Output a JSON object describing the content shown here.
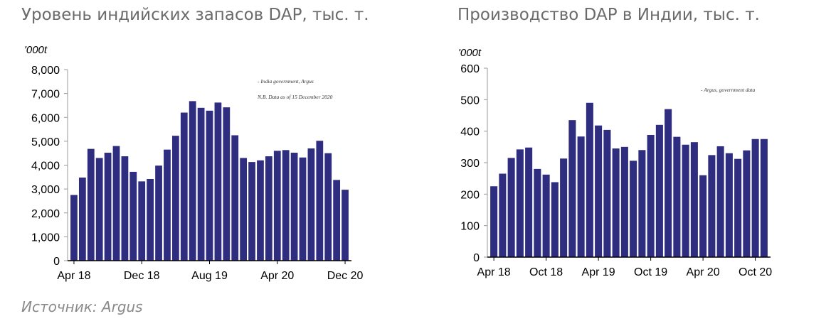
{
  "titles": {
    "left": "Уровень индийских запасов DAP, тыс. т.",
    "right": "Производство DAP в Индии, тыс. т."
  },
  "source": "Источник: Argus",
  "chart_data": [
    {
      "type": "bar",
      "title": "Уровень индийских запасов DAP, тыс. т.",
      "unit_label": "'000t",
      "ylim": [
        0,
        8000
      ],
      "yticks": [
        "0",
        "1,000",
        "2,000",
        "3,000",
        "4,000",
        "5,000",
        "6,000",
        "7,000",
        "8,000"
      ],
      "xtick_labels": [
        {
          "label": "Apr 18",
          "index": 0
        },
        {
          "label": "Dec 18",
          "index": 8
        },
        {
          "label": "Aug 19",
          "index": 16
        },
        {
          "label": "Apr 20",
          "index": 24
        },
        {
          "label": "Dec 20",
          "index": 32
        }
      ],
      "notes": [
        "- India government, Argus",
        "N.B. Data as of 15 December 2020"
      ],
      "bar_color": "#2e2d7f",
      "values": [
        2750,
        3480,
        4680,
        4300,
        4520,
        4800,
        4370,
        3720,
        3320,
        3420,
        3980,
        4650,
        5230,
        6200,
        6680,
        6400,
        6280,
        6620,
        6420,
        5250,
        4300,
        4130,
        4200,
        4370,
        4600,
        4630,
        4520,
        4320,
        4700,
        5020,
        4500,
        3380,
        2970
      ]
    },
    {
      "type": "bar",
      "title": "Производство DAP в Индии, тыс. т.",
      "unit_label": "'000t",
      "ylim": [
        0,
        600
      ],
      "yticks": [
        "0",
        "100",
        "200",
        "300",
        "400",
        "500",
        "600"
      ],
      "xtick_labels": [
        {
          "label": "Apr 18",
          "index": 0
        },
        {
          "label": "Oct 18",
          "index": 6
        },
        {
          "label": "Apr 19",
          "index": 12
        },
        {
          "label": "Oct 19",
          "index": 18
        },
        {
          "label": "Apr 20",
          "index": 24
        },
        {
          "label": "Oct 20",
          "index": 30
        }
      ],
      "notes": [
        "- Argus, government data"
      ],
      "bar_color": "#2e2d7f",
      "values": [
        225,
        265,
        315,
        342,
        348,
        280,
        262,
        238,
        313,
        435,
        383,
        490,
        418,
        404,
        345,
        350,
        306,
        340,
        388,
        420,
        470,
        382,
        357,
        365,
        260,
        324,
        352,
        330,
        312,
        339,
        375,
        375
      ]
    }
  ]
}
